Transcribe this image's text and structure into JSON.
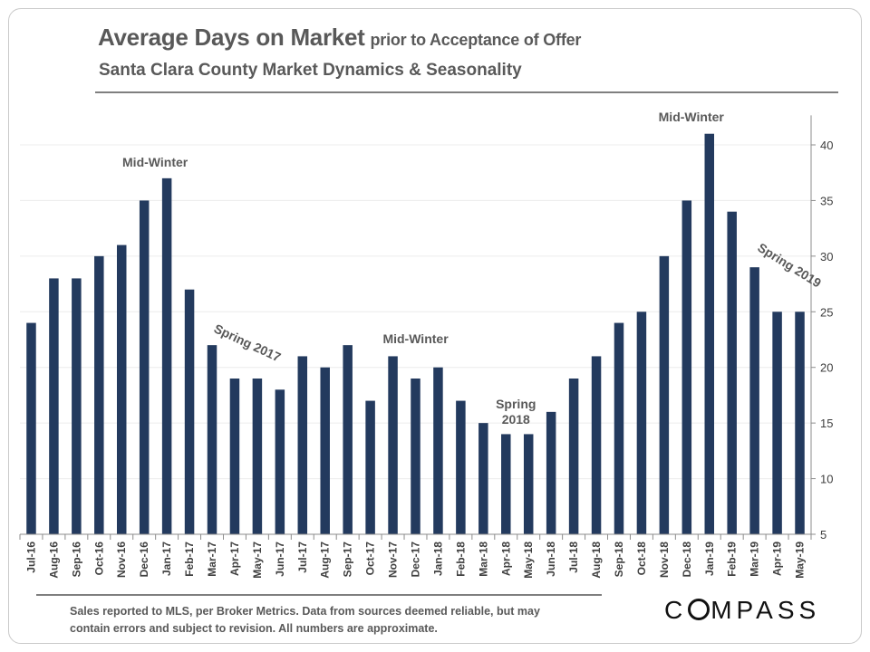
{
  "header": {
    "title_main": "Average Days on Market",
    "title_tail": "prior to Acceptance of Offer",
    "subtitle": "Santa Clara County Market Dynamics & Seasonality"
  },
  "footer": {
    "note": "Sales reported to MLS, per Broker Metrics. Data from sources deemed reliable, but may contain errors and subject to revision. All numbers are approximate.",
    "logo_text": "COMPASS"
  },
  "colors": {
    "bar": "#233a5e",
    "text": "#595959",
    "axis": "#8c8c8c"
  },
  "chart_data": {
    "type": "bar",
    "title": "Average Days on Market prior to Acceptance of Offer",
    "subtitle": "Santa Clara County Market Dynamics & Seasonality",
    "categories": [
      "Jul-16",
      "Aug-16",
      "Sep-16",
      "Oct-16",
      "Nov-16",
      "Dec-16",
      "Jan-17",
      "Feb-17",
      "Mar-17",
      "Apr-17",
      "May-17",
      "Jun-17",
      "Jul-17",
      "Aug-17",
      "Sep-17",
      "Oct-17",
      "Nov-17",
      "Dec-17",
      "Jan-18",
      "Feb-18",
      "Mar-18",
      "Apr-18",
      "May-18",
      "Jun-18",
      "Jul-18",
      "Aug-18",
      "Sep-18",
      "Oct-18",
      "Nov-18",
      "Dec-18",
      "Jan-19",
      "Feb-19",
      "Mar-19",
      "Apr-19",
      "May-19"
    ],
    "values": [
      24,
      28,
      28,
      30,
      31,
      35,
      37,
      27,
      22,
      19,
      19,
      18,
      21,
      20,
      22,
      17,
      21,
      19,
      20,
      17,
      15,
      14,
      14,
      16,
      19,
      21,
      24,
      25,
      30,
      35,
      41,
      34,
      29,
      25,
      25
    ],
    "ylim": [
      5,
      42
    ],
    "yticks": [
      5,
      10,
      15,
      20,
      25,
      30,
      35,
      40
    ],
    "y_axis_side": "right",
    "grid": true,
    "annotations": [
      {
        "text": "Mid-Winter",
        "category": "Jan-17"
      },
      {
        "text": "Spring 2017",
        "category": "Apr-17"
      },
      {
        "text": "Mid-Winter",
        "category": "Nov-17"
      },
      {
        "text": "Spring 2018",
        "category": "Apr-18"
      },
      {
        "text": "Mid-Winter",
        "category": "Jan-19"
      },
      {
        "text": "Spring 2019",
        "category": "Apr-19"
      }
    ]
  }
}
